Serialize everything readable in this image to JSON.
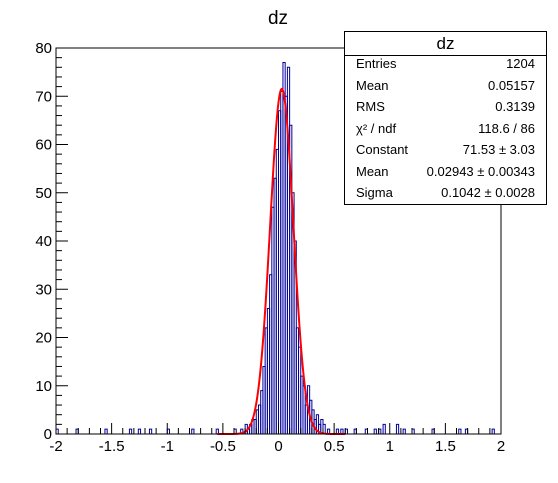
{
  "chart_data": {
    "type": "histogram",
    "title": "dz",
    "xlim": [
      -2,
      2
    ],
    "ylim": [
      0,
      80
    ],
    "xticks": [
      "-2",
      "-1.5",
      "-1",
      "-0.5",
      "0",
      "0.5",
      "1",
      "1.5",
      "2"
    ],
    "yticks": [
      "0",
      "10",
      "20",
      "30",
      "40",
      "50",
      "60",
      "70",
      "80"
    ],
    "bin_width": 0.02,
    "hist_color": "#000099",
    "fit_color": "#ff0000",
    "bins": [
      {
        "x": -1.99,
        "y": 1
      },
      {
        "x": -1.81,
        "y": 1
      },
      {
        "x": -1.55,
        "y": 1
      },
      {
        "x": -1.33,
        "y": 1
      },
      {
        "x": -1.25,
        "y": 1
      },
      {
        "x": -1.15,
        "y": 1
      },
      {
        "x": -0.99,
        "y": 1
      },
      {
        "x": -0.77,
        "y": 1
      },
      {
        "x": -0.55,
        "y": 1
      },
      {
        "x": -0.39,
        "y": 1
      },
      {
        "x": -0.33,
        "y": 1
      },
      {
        "x": -0.29,
        "y": 2
      },
      {
        "x": -0.27,
        "y": 1
      },
      {
        "x": -0.25,
        "y": 2
      },
      {
        "x": -0.23,
        "y": 3
      },
      {
        "x": -0.21,
        "y": 3
      },
      {
        "x": -0.19,
        "y": 5
      },
      {
        "x": -0.17,
        "y": 6
      },
      {
        "x": -0.15,
        "y": 9
      },
      {
        "x": -0.13,
        "y": 14
      },
      {
        "x": -0.11,
        "y": 22
      },
      {
        "x": -0.09,
        "y": 26
      },
      {
        "x": -0.07,
        "y": 33
      },
      {
        "x": -0.05,
        "y": 47
      },
      {
        "x": -0.03,
        "y": 53
      },
      {
        "x": -0.01,
        "y": 59
      },
      {
        "x": 0.01,
        "y": 67
      },
      {
        "x": 0.03,
        "y": 71
      },
      {
        "x": 0.05,
        "y": 77
      },
      {
        "x": 0.07,
        "y": 70
      },
      {
        "x": 0.09,
        "y": 76
      },
      {
        "x": 0.11,
        "y": 64
      },
      {
        "x": 0.13,
        "y": 50
      },
      {
        "x": 0.15,
        "y": 40
      },
      {
        "x": 0.17,
        "y": 22
      },
      {
        "x": 0.19,
        "y": 18
      },
      {
        "x": 0.21,
        "y": 12
      },
      {
        "x": 0.23,
        "y": 10
      },
      {
        "x": 0.25,
        "y": 6
      },
      {
        "x": 0.27,
        "y": 10
      },
      {
        "x": 0.29,
        "y": 7
      },
      {
        "x": 0.31,
        "y": 5
      },
      {
        "x": 0.33,
        "y": 3
      },
      {
        "x": 0.35,
        "y": 4
      },
      {
        "x": 0.37,
        "y": 2
      },
      {
        "x": 0.39,
        "y": 3
      },
      {
        "x": 0.41,
        "y": 2
      },
      {
        "x": 0.45,
        "y": 1
      },
      {
        "x": 0.53,
        "y": 1
      },
      {
        "x": 0.57,
        "y": 1
      },
      {
        "x": 0.61,
        "y": 1
      },
      {
        "x": 0.69,
        "y": 1
      },
      {
        "x": 0.79,
        "y": 1
      },
      {
        "x": 0.87,
        "y": 1
      },
      {
        "x": 0.91,
        "y": 1
      },
      {
        "x": 0.95,
        "y": 2
      },
      {
        "x": 1.07,
        "y": 2
      },
      {
        "x": 1.13,
        "y": 1
      },
      {
        "x": 1.21,
        "y": 1
      },
      {
        "x": 1.39,
        "y": 1
      },
      {
        "x": 1.63,
        "y": 1
      },
      {
        "x": 1.69,
        "y": 1
      },
      {
        "x": 1.93,
        "y": 1
      }
    ],
    "fit": {
      "function": "gaus",
      "constant": 71.53,
      "mean": 0.02943,
      "sigma": 0.1042
    },
    "stats_box": {
      "title": "dz",
      "rows": [
        {
          "label": "Entries",
          "value": "1204"
        },
        {
          "label": "Mean",
          "value": "0.05157"
        },
        {
          "label": "RMS",
          "value": "0.3139"
        },
        {
          "label": "χ² / ndf",
          "value": "118.6 / 86"
        },
        {
          "label": "Constant",
          "value": "71.53 ± 3.03"
        },
        {
          "label": "Mean",
          "value": "0.02943 ± 0.00343"
        },
        {
          "label": "Sigma",
          "value": "0.1042 ± 0.0028"
        }
      ]
    }
  }
}
